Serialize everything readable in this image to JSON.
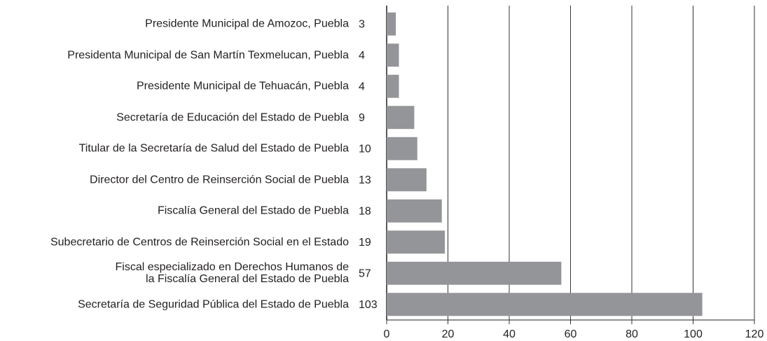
{
  "chart_data": {
    "type": "bar",
    "orientation": "horizontal",
    "categories": [
      "Presidente Municipal de Amozoc, Puebla",
      "Presidenta Municipal de San Martín Texmelucan, Puebla",
      "Presidente Municipal de Tehuacán, Puebla",
      "Secretaría de Educación del Estado de Puebla",
      "Titular de la Secretaría de Salud del Estado de Puebla",
      "Director del Centro de Reinserción Social de Puebla",
      "Fiscalía General del Estado de Puebla",
      "Subecretario de Centros de Reinserción Social en el Estado",
      "Fiscal especializado en Derechos Humanos de\nla Fiscalía General del Estado de Puebla",
      "Secretaría de Seguridad Pública del Estado de Puebla"
    ],
    "values": [
      3,
      4,
      4,
      9,
      10,
      13,
      18,
      19,
      57,
      103
    ],
    "color": "#939598",
    "xlim": [
      0,
      120
    ],
    "xticks": [
      0,
      20,
      40,
      60,
      80,
      100,
      120
    ],
    "grid": true
  }
}
